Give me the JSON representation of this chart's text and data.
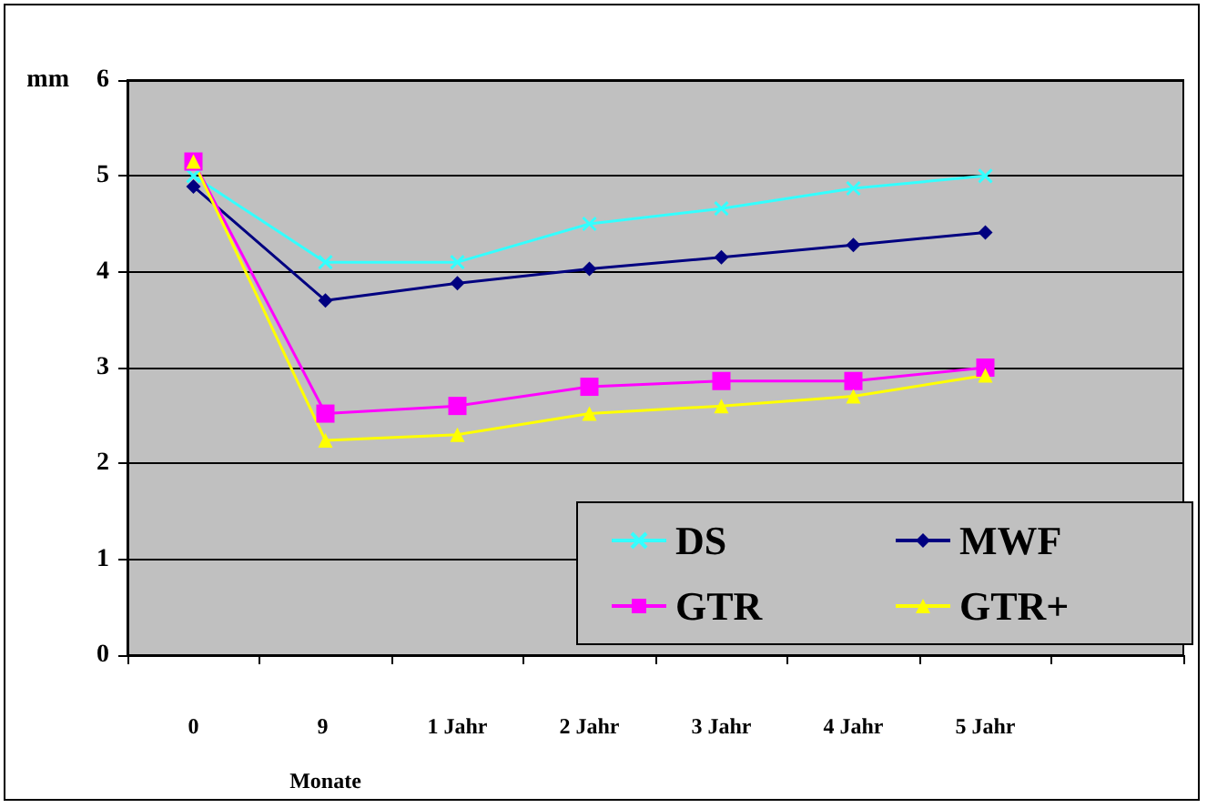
{
  "chart_data": {
    "type": "line",
    "ylabel": "mm",
    "categories": [
      "0",
      "9 Monate",
      "1 Jahr",
      "2 Jahr",
      "3 Jahr",
      "4 Jahr",
      "5 Jahr",
      null
    ],
    "ylim": [
      0,
      6
    ],
    "yticks": [
      0,
      1,
      2,
      3,
      4,
      5,
      6
    ],
    "grid": "y",
    "legend": "bottom right",
    "series": [
      {
        "name": "DS",
        "color": "#33ffff",
        "marker": "cross",
        "values": [
          5.0,
          4.1,
          4.1,
          4.5,
          4.66,
          4.87,
          5.0,
          null
        ]
      },
      {
        "name": "MWF",
        "color": "#000080",
        "marker": "diamond",
        "values": [
          4.89,
          3.7,
          3.88,
          4.03,
          4.15,
          4.28,
          4.41,
          null
        ]
      },
      {
        "name": "GTR",
        "color": "#ff00ff",
        "marker": "square",
        "values": [
          5.15,
          2.52,
          2.6,
          2.8,
          2.86,
          2.86,
          3.0,
          null
        ]
      },
      {
        "name": "GTR+",
        "color": "#ffff00",
        "marker": "triangle",
        "values": [
          5.15,
          2.24,
          2.3,
          2.52,
          2.6,
          2.7,
          2.92,
          null
        ]
      }
    ]
  }
}
